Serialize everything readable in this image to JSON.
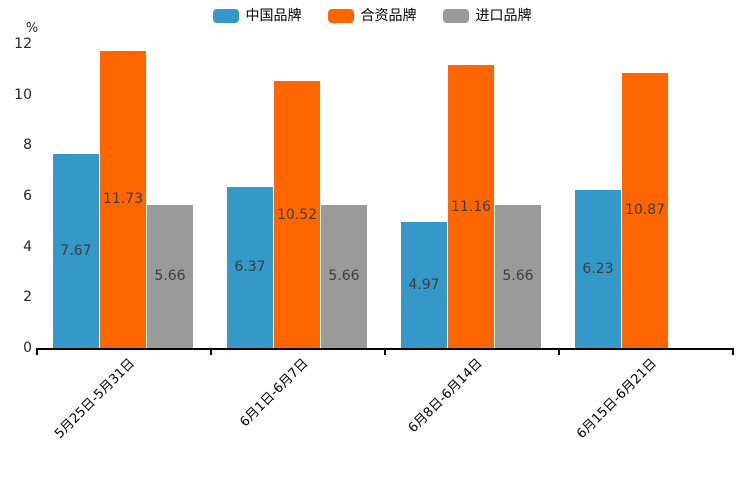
{
  "chart_data": {
    "type": "bar",
    "title": "",
    "xlabel": "",
    "ylabel": "%",
    "ylim": [
      0,
      12
    ],
    "yticks": [
      0,
      2,
      4,
      6,
      8,
      10,
      12
    ],
    "grid": false,
    "legend_position": "top-center",
    "categories": [
      "5月25日-5月31日",
      "6月1日-6月7日",
      "6月8日-6月14日",
      "6月15日-6月21日"
    ],
    "series": [
      {
        "name": "中国品牌",
        "color": "#3498c8",
        "values": [
          7.67,
          6.37,
          4.97,
          6.23
        ]
      },
      {
        "name": "合资品牌",
        "color": "#ff6600",
        "values": [
          11.73,
          10.52,
          11.16,
          10.87
        ]
      },
      {
        "name": "进口品牌",
        "color": "#9a9a9a",
        "values": [
          5.66,
          5.66,
          5.66,
          null
        ]
      }
    ],
    "bar_label_color": "#3d3d3d",
    "axis_color": "#000000"
  }
}
